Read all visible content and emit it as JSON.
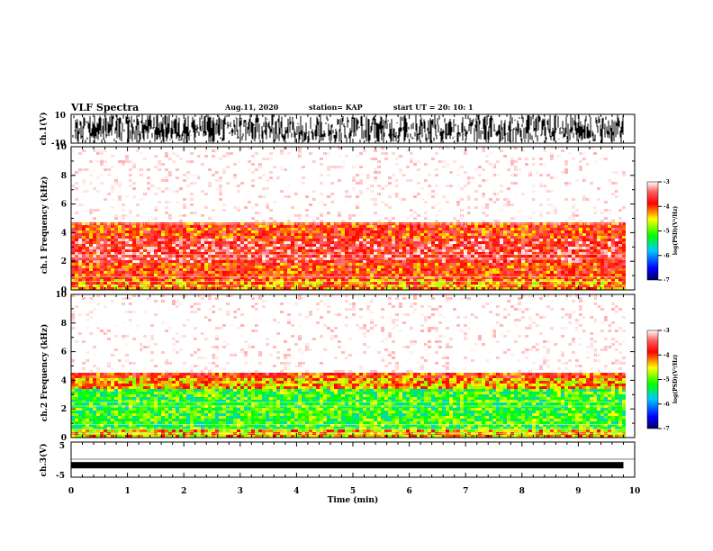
{
  "header": {
    "title": "VLF Spectra",
    "date": "Aug.11, 2020",
    "station": "station= KAP",
    "start": "start UT =  20: 10: 1"
  },
  "chart_data": [
    {
      "type": "line",
      "panel": "ch1-waveform",
      "ylabel": "ch.1(V)",
      "ylim": [
        -10,
        10
      ],
      "yticks": [
        "10",
        "-10"
      ],
      "xlim": [
        0,
        10
      ],
      "trace_end": 9.8,
      "description_values": {
        "amplitude_min": -10,
        "amplitude_max": 10
      }
    },
    {
      "type": "heatmap",
      "panel": "ch1-spectrogram",
      "ylabel": "ch.1 Frequency (kHz)",
      "ylim": [
        0,
        10
      ],
      "yticks": [
        "0",
        "2",
        "4",
        "6",
        "8",
        "10"
      ],
      "xlim": [
        0,
        9.8
      ],
      "bands": [
        {
          "from": 0,
          "to": 0.8,
          "level": -4.2
        },
        {
          "from": 0.8,
          "to": 2.0,
          "level": -3.9
        },
        {
          "from": 2.0,
          "to": 3.6,
          "level": -3.6
        },
        {
          "from": 3.6,
          "to": 4.9,
          "level": -3.9
        },
        {
          "from": 4.9,
          "to": 10,
          "level": -2.6
        }
      ],
      "colorbar": {
        "label": "log(PSD)(V²/Hz)",
        "ticks": [
          "-3",
          "-4",
          "-5",
          "-6",
          "-7"
        ],
        "range": [
          -7,
          -3
        ]
      }
    },
    {
      "type": "heatmap",
      "panel": "ch2-spectrogram",
      "ylabel": "ch.2 Frequency (kHz)",
      "ylim": [
        0,
        10
      ],
      "yticks": [
        "0",
        "2",
        "4",
        "6",
        "8",
        "10"
      ],
      "xlim": [
        0,
        9.8
      ],
      "bands": [
        {
          "from": 0,
          "to": 0.6,
          "level": -4.4
        },
        {
          "from": 0.6,
          "to": 3.5,
          "level": -5.1
        },
        {
          "from": 3.5,
          "to": 4.3,
          "level": -4.3
        },
        {
          "from": 4.3,
          "to": 4.6,
          "level": -3.9
        },
        {
          "from": 4.6,
          "to": 10,
          "level": -2.6
        }
      ],
      "colorbar": {
        "label": "log(PSD)(V²/Hz)",
        "ticks": [
          "-3",
          "-4",
          "-5",
          "-6",
          "-7"
        ],
        "range": [
          -7,
          -3
        ]
      }
    },
    {
      "type": "line",
      "panel": "ch3-waveform",
      "ylabel": "ch.3(V)",
      "ylim": [
        -5,
        5
      ],
      "yticks": [
        "5",
        "-5"
      ],
      "xlim": [
        0,
        10
      ],
      "trace_level": -1.6,
      "trace_end": 9.8
    }
  ],
  "xaxis": {
    "label": "Time (min)",
    "ticks": [
      "0",
      "1",
      "2",
      "3",
      "4",
      "5",
      "6",
      "7",
      "8",
      "9",
      "10"
    ],
    "range": [
      0,
      10
    ]
  }
}
